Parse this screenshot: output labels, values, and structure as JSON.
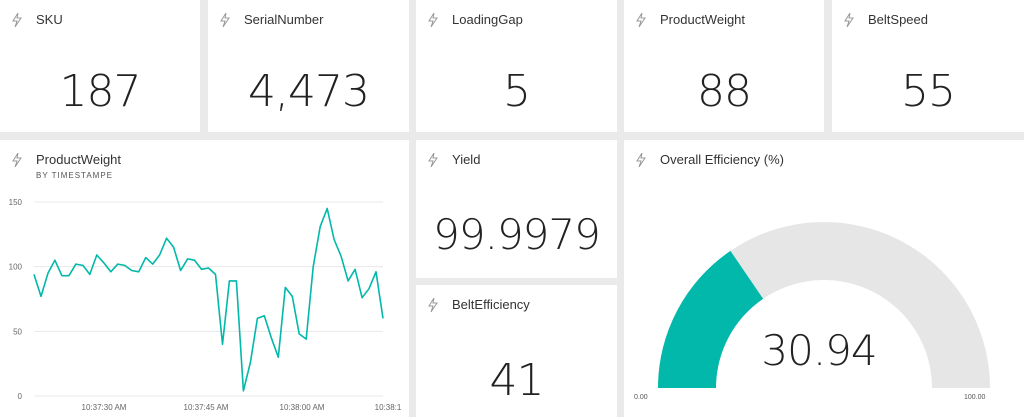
{
  "tiles": {
    "sku": {
      "title": "SKU",
      "value": "187"
    },
    "serial": {
      "title": "SerialNumber",
      "value": "4,473"
    },
    "loading_gap": {
      "title": "LoadingGap",
      "value": "5"
    },
    "product_weight": {
      "title": "ProductWeight",
      "value": "88"
    },
    "belt_speed": {
      "title": "BeltSpeed",
      "value": "55"
    },
    "yield": {
      "title": "Yield",
      "value": "99.9979"
    },
    "belt_efficiency": {
      "title": "BeltEfficiency",
      "value": "41"
    }
  },
  "line_chart": {
    "title": "ProductWeight",
    "subtitle": "BY TIMESTAMPE"
  },
  "gauge": {
    "title": "Overall Efficiency (%)",
    "value": 30.94,
    "value_label": "30.94",
    "min_label": "0.00",
    "max_label": "100.00",
    "min": 0,
    "max": 100,
    "fill_color": "#01b8aa",
    "track_color": "#e6e6e6"
  },
  "colors": {
    "accent": "#01b8aa",
    "background": "#eaeaea"
  },
  "icons": {
    "tile_icon": "lightning-bolt-icon"
  },
  "chart_data": {
    "type": "line",
    "title": "ProductWeight",
    "subtitle": "BY TIMESTAMPE",
    "ylim": [
      0,
      150
    ],
    "yticks": [
      "150",
      "100",
      "50",
      "0"
    ],
    "xticks": [
      "10:37:30 AM",
      "10:37:45 AM",
      "10:38:00 AM",
      "10:38:1"
    ],
    "grid": true,
    "series": [
      {
        "color": "#01b8aa",
        "values": [
          94,
          77,
          95,
          105,
          93,
          93,
          102,
          101,
          94,
          109,
          103,
          96,
          102,
          101,
          97,
          96,
          107,
          102,
          109,
          122,
          115,
          97,
          106,
          105,
          98,
          99,
          94,
          40,
          89,
          89,
          4,
          26,
          60,
          62,
          45,
          30,
          84,
          77,
          48,
          44,
          100,
          131,
          145,
          121,
          108,
          89,
          98,
          76,
          83,
          96,
          60
        ]
      }
    ]
  }
}
